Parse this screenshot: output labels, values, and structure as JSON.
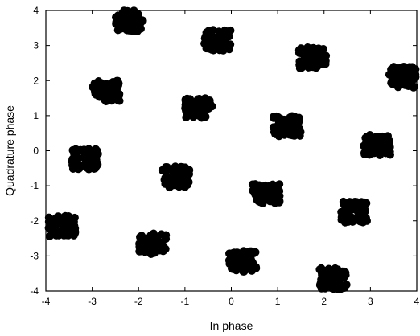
{
  "chart_data": {
    "type": "scatter",
    "xlabel": "In phase",
    "ylabel": "Quadrature phase",
    "xlim": [
      -4,
      4
    ],
    "ylim": [
      -4,
      4
    ],
    "xticks": [
      -4,
      -3,
      -2,
      -1,
      0,
      1,
      2,
      3,
      4
    ],
    "yticks": [
      -4,
      -3,
      -2,
      -1,
      0,
      1,
      2,
      3,
      4
    ],
    "grid": false,
    "marker_color": "#000000",
    "series": [
      {
        "clusters": [
          {
            "x": -2.2,
            "y": 3.7
          },
          {
            "x": -0.3,
            "y": 3.15
          },
          {
            "x": 1.75,
            "y": 2.65
          },
          {
            "x": 3.7,
            "y": 2.1
          },
          {
            "x": -2.7,
            "y": 1.7
          },
          {
            "x": -0.7,
            "y": 1.2
          },
          {
            "x": 1.2,
            "y": 0.7
          },
          {
            "x": 3.15,
            "y": 0.15
          },
          {
            "x": -3.15,
            "y": -0.25
          },
          {
            "x": -1.2,
            "y": -0.75
          },
          {
            "x": 0.75,
            "y": -1.25
          },
          {
            "x": 2.65,
            "y": -1.75
          },
          {
            "x": -3.65,
            "y": -2.15
          },
          {
            "x": -1.7,
            "y": -2.65
          },
          {
            "x": 0.25,
            "y": -3.15
          },
          {
            "x": 2.2,
            "y": -3.65
          }
        ]
      }
    ]
  }
}
